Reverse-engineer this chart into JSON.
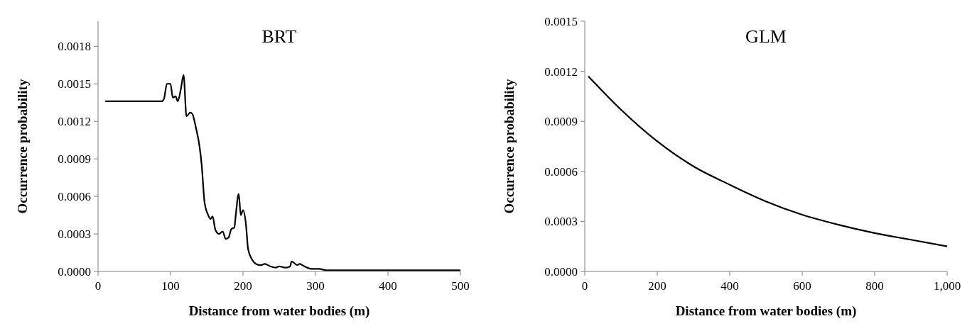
{
  "chart_data": [
    {
      "type": "line",
      "title": "BRT",
      "xlabel": "Distance from water bodies (m)",
      "ylabel": "Occurrence probability",
      "xlim": [
        0,
        500
      ],
      "xticks": [
        0,
        100,
        200,
        300,
        400,
        500
      ],
      "ylim": [
        0,
        0.002
      ],
      "yticks": [
        {
          "value": 0,
          "label": "0.0000"
        },
        {
          "value": 0.0003,
          "label": "0.0003"
        },
        {
          "value": 0.0006,
          "label": "0.0006"
        },
        {
          "value": 0.0009,
          "label": "0.0009"
        },
        {
          "value": 0.0012,
          "label": "0.0012"
        },
        {
          "value": 0.0015,
          "label": "0.0015"
        },
        {
          "value": 0.0018,
          "label": "0.0018"
        }
      ],
      "grid": false,
      "marker": "none",
      "line_style": "solid",
      "series": [
        {
          "color": "#000000",
          "x": [
            10,
            88,
            91,
            95,
            100,
            103,
            107,
            110,
            114,
            118,
            122,
            127,
            130,
            135,
            140,
            143,
            147,
            152,
            155,
            158,
            162,
            167,
            172,
            176,
            180,
            184,
            188,
            190,
            194,
            197,
            200,
            204,
            207,
            212,
            218,
            225,
            230,
            238,
            245,
            250,
            258,
            265,
            267,
            275,
            278,
            285,
            295,
            305,
            315,
            500
          ],
          "values": [
            0.00136,
            0.00136,
            0.00138,
            0.0015,
            0.0015,
            0.00139,
            0.0014,
            0.00136,
            0.00145,
            0.00157,
            0.00124,
            0.00127,
            0.00126,
            0.00115,
            0.001,
            0.00085,
            0.00055,
            0.00045,
            0.00042,
            0.00044,
            0.00033,
            0.0003,
            0.00032,
            0.00026,
            0.00027,
            0.00034,
            0.00035,
            0.00045,
            0.00062,
            0.00045,
            0.00049,
            0.00038,
            0.00018,
            0.0001,
            6e-05,
            5e-05,
            6e-05,
            4e-05,
            3e-05,
            4e-05,
            3e-05,
            4e-05,
            8e-05,
            5e-05,
            6e-05,
            4e-05,
            2e-05,
            2e-05,
            1e-05,
            1e-05
          ]
        }
      ]
    },
    {
      "type": "line",
      "title": "GLM",
      "xlabel": "Distance from water bodies (m)",
      "ylabel": "Occurrence probability",
      "xlim": [
        0,
        1000
      ],
      "xticks": [
        0,
        200,
        400,
        600,
        800,
        {
          "value": 1000,
          "label": "1,000"
        }
      ],
      "ylim": [
        0,
        0.0015
      ],
      "yticks": [
        {
          "value": 0,
          "label": "0.0000"
        },
        {
          "value": 0.0003,
          "label": "0.0003"
        },
        {
          "value": 0.0006,
          "label": "0.0006"
        },
        {
          "value": 0.0009,
          "label": "0.0009"
        },
        {
          "value": 0.0012,
          "label": "0.0012"
        },
        {
          "value": 0.0015,
          "label": "0.0015"
        }
      ],
      "grid": false,
      "marker": "none",
      "line_style": "solid",
      "series": [
        {
          "color": "#000000",
          "x": [
            10,
            100,
            200,
            300,
            400,
            500,
            600,
            700,
            800,
            900,
            1000
          ],
          "values": [
            0.00117,
            0.00097,
            0.00078,
            0.00063,
            0.00052,
            0.00042,
            0.00034,
            0.00028,
            0.00023,
            0.00019,
            0.00015
          ]
        }
      ]
    }
  ]
}
